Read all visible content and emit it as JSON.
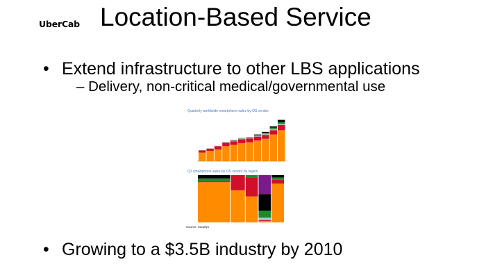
{
  "logo": "UberCab",
  "title": "Location-Based Service",
  "bullets": [
    {
      "marker": "•",
      "text": "Extend infrastructure to other LBS applications"
    },
    {
      "marker": "–",
      "text": "Delivery, non-critical medical/governmental use"
    },
    {
      "marker": "•",
      "text": "Growing to a $3.5B industry by 2010"
    }
  ],
  "figure": {
    "top_title": "Quarterly worldwide smartphone sales by OS vendor",
    "bottom_title": "Q3 smartphone sales by OS vendor by region",
    "source": "Source: Canalys",
    "colors": {
      "orange": "#ff8c00",
      "red": "#d0102a",
      "grey": "#b0b0b0",
      "green": "#1c8a2c",
      "black": "#000000",
      "purple": "#7a1b8c",
      "lightblue": "#9fd0d0"
    },
    "top_series_order": [
      "orange",
      "red",
      "grey",
      "green",
      "black"
    ],
    "top_stacks": [
      [
        20,
        5,
        1,
        0,
        0
      ],
      [
        24,
        5,
        1,
        0,
        0
      ],
      [
        27,
        8,
        1,
        0,
        0
      ],
      [
        35,
        8,
        2,
        0,
        0
      ],
      [
        38,
        8,
        2,
        0,
        1
      ],
      [
        42,
        9,
        2,
        1,
        0
      ],
      [
        44,
        9,
        2,
        1,
        0
      ],
      [
        48,
        9,
        2,
        2,
        1
      ],
      [
        52,
        9,
        3,
        2,
        2
      ],
      [
        62,
        10,
        3,
        3,
        3
      ],
      [
        72,
        12,
        3,
        4,
        5
      ]
    ],
    "bottom_regions": [
      {
        "share": 0.38,
        "stack": [
          [
            "orange",
            85
          ],
          [
            "red",
            2
          ],
          [
            "green",
            6
          ],
          [
            "black",
            7
          ]
        ]
      },
      {
        "share": 0.17,
        "stack": [
          [
            "orange",
            68
          ],
          [
            "red",
            32
          ]
        ]
      },
      {
        "share": 0.15,
        "stack": [
          [
            "orange",
            55
          ],
          [
            "red",
            40
          ],
          [
            "green",
            5
          ]
        ]
      },
      {
        "share": 0.15,
        "stack": [
          [
            "orange",
            3
          ],
          [
            "red",
            2
          ],
          [
            "lightblue",
            5
          ],
          [
            "green",
            15
          ],
          [
            "black",
            35
          ],
          [
            "purple",
            40
          ]
        ]
      },
      {
        "share": 0.15,
        "stack": [
          [
            "orange",
            82
          ],
          [
            "red",
            8
          ],
          [
            "green",
            5
          ],
          [
            "black",
            5
          ]
        ]
      }
    ]
  }
}
